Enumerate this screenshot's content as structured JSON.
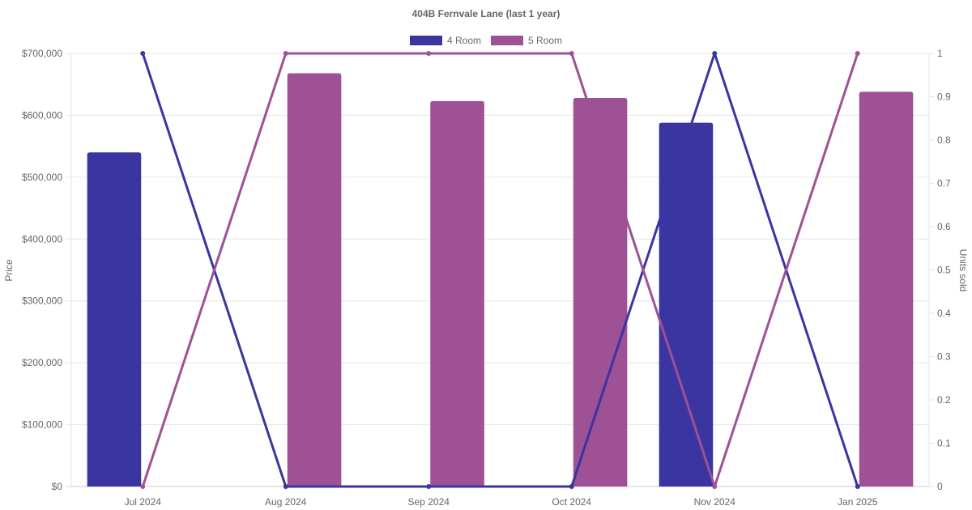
{
  "chart_data": {
    "type": "bar+line",
    "title": "404B Fernvale Lane (last 1 year)",
    "categories": [
      "Jul 2024",
      "Aug 2024",
      "Sep 2024",
      "Oct 2024",
      "Nov 2024",
      "Jan 2025"
    ],
    "y_left": {
      "label": "Price",
      "range": [
        0,
        700000
      ],
      "ticks": [
        "$0",
        "$100,000",
        "$200,000",
        "$300,000",
        "$400,000",
        "$500,000",
        "$600,000",
        "$700,000"
      ]
    },
    "y_right": {
      "label": "Units sold",
      "range": [
        0,
        1
      ],
      "ticks": [
        "0",
        "0.1",
        "0.2",
        "0.3",
        "0.4",
        "0.5",
        "0.6",
        "0.7",
        "0.8",
        "0.9",
        "1"
      ]
    },
    "legend_position": "top",
    "grid": true,
    "series": [
      {
        "name": "4 Room",
        "color": "#3a35a0",
        "price": [
          540000,
          null,
          null,
          null,
          588000,
          null
        ],
        "units": [
          1,
          0,
          0,
          0,
          1,
          0
        ]
      },
      {
        "name": "5 Room",
        "color": "#9e5194",
        "price": [
          null,
          668000,
          623000,
          628000,
          null,
          638000
        ],
        "units": [
          0,
          1,
          1,
          1,
          0,
          1
        ]
      }
    ]
  }
}
